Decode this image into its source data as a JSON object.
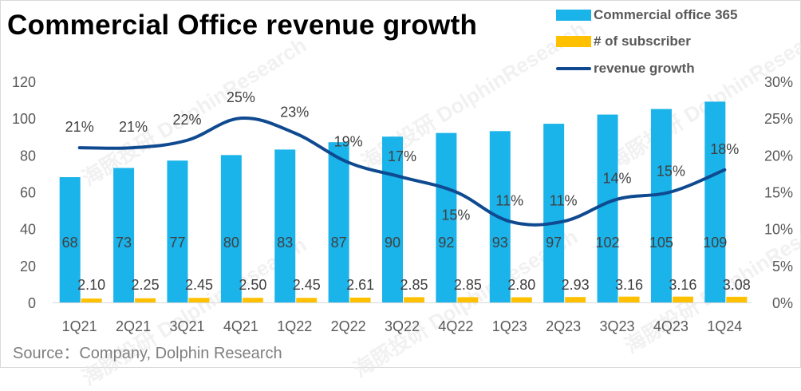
{
  "title": "Commercial Office revenue growth",
  "source": "Source：Company, Dolphin Research",
  "watermark": "海豚投研 DolphinResearch",
  "colors": {
    "bars": "#1ab3ea",
    "subscriber": "#ffc000",
    "line": "#0f4a90",
    "axis_text": "#595959",
    "label_text": "#404040"
  },
  "legend": [
    {
      "key": "office",
      "label": "Commercial office 365",
      "kind": "bar"
    },
    {
      "key": "subscriber",
      "label": "# of subscriber",
      "kind": "bar"
    },
    {
      "key": "growth",
      "label": "revenue growth",
      "kind": "line"
    }
  ],
  "chart_data": {
    "type": "bar",
    "categories": [
      "1Q21",
      "2Q21",
      "3Q21",
      "4Q21",
      "1Q22",
      "2Q22",
      "3Q22",
      "4Q22",
      "1Q23",
      "2Q23",
      "3Q23",
      "4Q23",
      "1Q24"
    ],
    "series": [
      {
        "name": "Commercial office 365",
        "axis": "left",
        "type": "bar",
        "values": [
          68,
          73,
          77,
          80,
          83,
          87,
          90,
          92,
          93,
          97,
          102,
          105,
          109
        ],
        "labels": [
          "68",
          "73",
          "77",
          "80",
          "83",
          "87",
          "90",
          "92",
          "93",
          "97",
          "102",
          "105",
          "109"
        ]
      },
      {
        "name": "# of subscriber",
        "axis": "left",
        "type": "bar",
        "values": [
          2.1,
          2.25,
          2.45,
          2.5,
          2.45,
          2.61,
          2.85,
          2.85,
          2.8,
          2.93,
          3.16,
          3.16,
          3.08
        ],
        "labels": [
          "2.10",
          "2.25",
          "2.45",
          "2.50",
          "2.45",
          "2.61",
          "2.85",
          "2.85",
          "2.80",
          "2.93",
          "3.16",
          "3.16",
          "3.08"
        ]
      },
      {
        "name": "revenue growth",
        "axis": "right",
        "type": "line",
        "values": [
          21,
          21,
          22,
          25,
          23,
          19,
          17,
          15,
          11,
          11,
          14,
          15,
          18
        ],
        "labels": [
          "21%",
          "21%",
          "22%",
          "25%",
          "23%",
          "19%",
          "17%",
          "15%",
          "11%",
          "11%",
          "14%",
          "15%",
          "18%"
        ]
      }
    ],
    "y_left": {
      "min": 0,
      "max": 120,
      "ticks": [
        "0",
        "20",
        "40",
        "60",
        "80",
        "100",
        "120"
      ]
    },
    "y_right": {
      "min": 0,
      "max": 30,
      "ticks": [
        "0%",
        "5%",
        "10%",
        "15%",
        "20%",
        "25%",
        "30%"
      ]
    },
    "grid": false,
    "legend_position": "top-right"
  }
}
